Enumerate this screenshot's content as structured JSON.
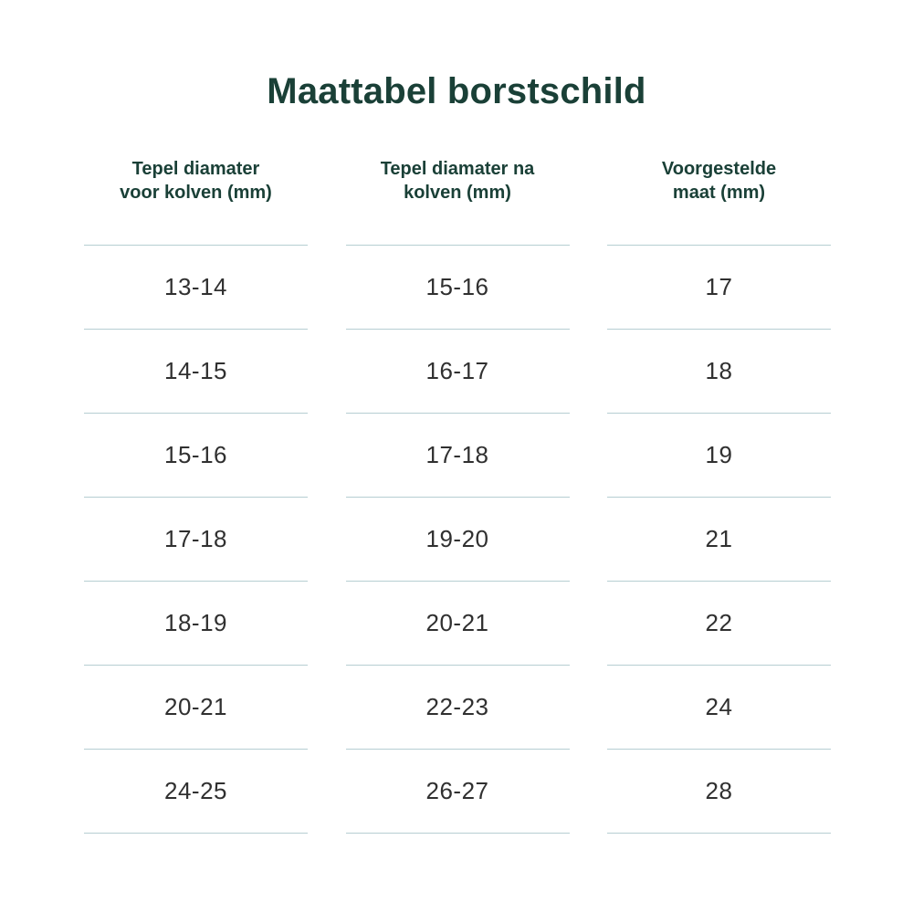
{
  "title": "Maattabel borstschild",
  "colors": {
    "heading_green": "#1a4037",
    "divider_line": "#b6ced2",
    "cell_text": "#303030",
    "background": "#ffffff"
  },
  "table": {
    "columns": [
      {
        "header": "Tepel diamater voor kolven (mm)",
        "line1": "Tepel diamater",
        "line2": "voor kolven (mm)"
      },
      {
        "header": "Tepel diamater na kolven (mm)",
        "line1": "Tepel diamater na",
        "line2": "kolven (mm)"
      },
      {
        "header": "Voorgestelde maat (mm)",
        "line1": "Voorgestelde",
        "line2": "maat (mm)"
      }
    ],
    "rows": [
      [
        "13-14",
        "15-16",
        "17"
      ],
      [
        "14-15",
        "16-17",
        "18"
      ],
      [
        "15-16",
        "17-18",
        "19"
      ],
      [
        "17-18",
        "19-20",
        "21"
      ],
      [
        "18-19",
        "20-21",
        "22"
      ],
      [
        "20-21",
        "22-23",
        "24"
      ],
      [
        "24-25",
        "26-27",
        "28"
      ]
    ]
  },
  "chart_data": {
    "type": "table",
    "title": "Maattabel borstschild",
    "columns": [
      "Tepel diamater voor kolven (mm)",
      "Tepel diamater na kolven (mm)",
      "Voorgestelde maat (mm)"
    ],
    "rows": [
      [
        "13-14",
        "15-16",
        "17"
      ],
      [
        "14-15",
        "16-17",
        "18"
      ],
      [
        "15-16",
        "17-18",
        "19"
      ],
      [
        "17-18",
        "19-20",
        "21"
      ],
      [
        "18-19",
        "20-21",
        "22"
      ],
      [
        "20-21",
        "22-23",
        "24"
      ],
      [
        "24-25",
        "26-27",
        "28"
      ]
    ],
    "layout": {
      "grid": "horizontal dividers per column only",
      "header_position": "top"
    }
  }
}
